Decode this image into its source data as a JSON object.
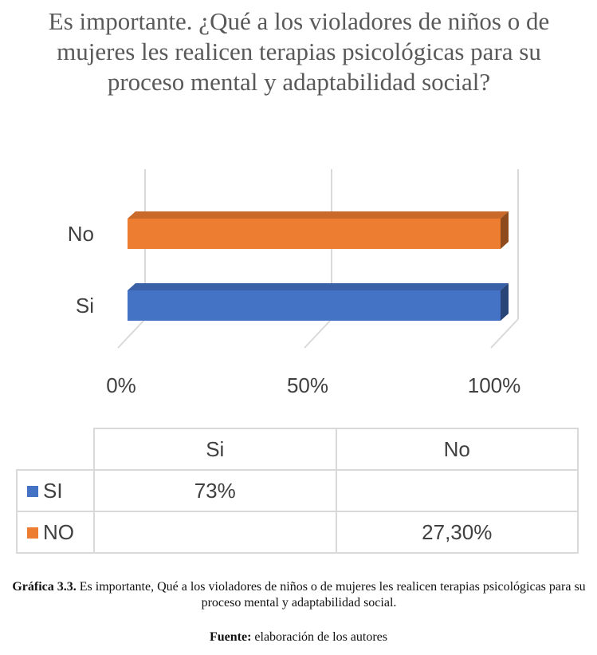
{
  "chart_data": {
    "type": "bar",
    "orientation": "horizontal",
    "style": "3d",
    "title": "Es importante. ¿Qué a los violadores de niños o de mujeres les realicen terapias psicológicas para su proceso mental y adaptabilidad social?",
    "categories": [
      "No",
      "Si"
    ],
    "values": [
      100,
      100
    ],
    "colors": [
      "#ED7D31",
      "#4472C4"
    ],
    "xlim": [
      0,
      100
    ],
    "x_ticks": [
      "0%",
      "50%",
      "100%"
    ],
    "grid": true
  },
  "table": {
    "headers": [
      "Si",
      "No"
    ],
    "rows": [
      {
        "label": "SI",
        "color": "#4472C4",
        "cells": [
          "73%",
          ""
        ]
      },
      {
        "label": "NO",
        "color": "#ED7D31",
        "cells": [
          "",
          "27,30%"
        ]
      }
    ]
  },
  "caption": {
    "label": "Gráfica 3.3.",
    "text": "Es importante, Qué a los violadores de niños o de mujeres les realicen terapias psicológicas para su proceso mental y adaptabilidad social."
  },
  "source": {
    "label": "Fuente:",
    "text": "elaboración de los autores"
  }
}
